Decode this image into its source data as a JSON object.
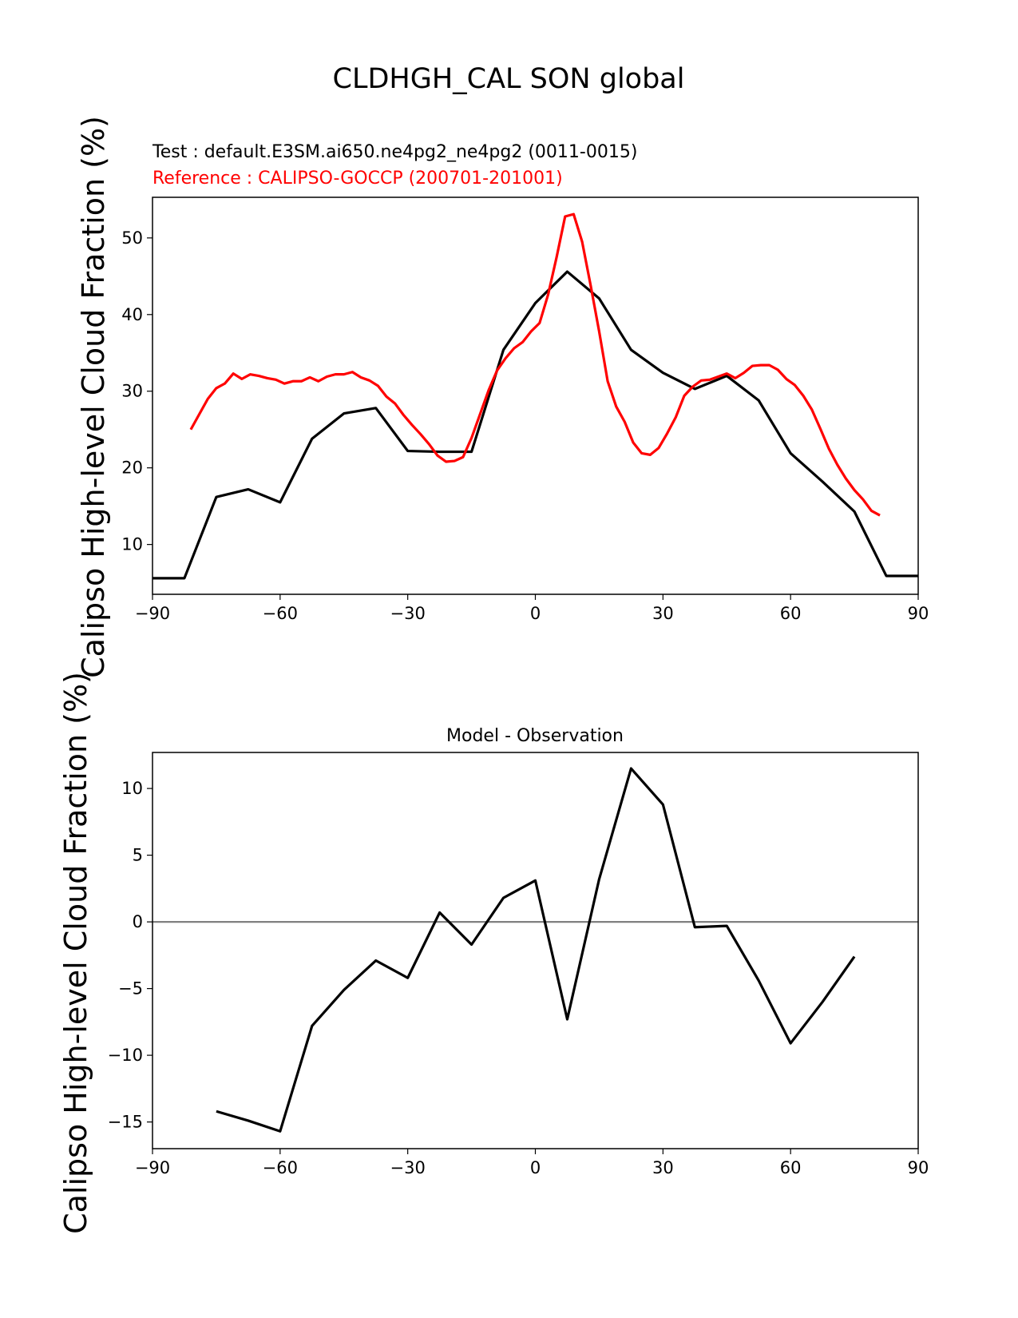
{
  "figure": {
    "suptitle": "CLDHGH_CAL SON global",
    "ylabel": "Calipso High-level Cloud Fraction (%)"
  },
  "colors": {
    "test": "#000000",
    "reference": "#ff0000",
    "zero_line": "#808080"
  },
  "chart_data": [
    {
      "type": "line",
      "test_label": "Test : default.E3SM.ai650.ne4pg2_ne4pg2 (0011-0015)",
      "reference_label": "Reference : CALIPSO-GOCCP (200701-201001)",
      "xlim": [
        -90,
        90
      ],
      "ylim": [
        3.5,
        55.3
      ],
      "xticks": [
        -90,
        -60,
        -30,
        0,
        30,
        60,
        90
      ],
      "xticklabels": [
        "−90",
        "−60",
        "−30",
        "0",
        "30",
        "60",
        "90"
      ],
      "yticks": [
        10,
        20,
        30,
        40,
        50
      ],
      "series": [
        {
          "name": "Test",
          "x": [
            -90,
            -82.5,
            -75,
            -67.5,
            -60,
            -52.5,
            -45,
            -37.5,
            -30,
            -22.5,
            -15,
            -7.5,
            0,
            7.5,
            15,
            22.5,
            30,
            37.5,
            45,
            52.5,
            60,
            67.5,
            75,
            82.5,
            90
          ],
          "y": [
            5.6,
            5.6,
            16.2,
            17.2,
            15.5,
            23.8,
            27.1,
            27.8,
            22.2,
            22.1,
            22.1,
            35.4,
            41.5,
            45.6,
            42.1,
            35.4,
            32.4,
            30.3,
            32.0,
            28.8,
            21.9,
            18.2,
            14.3,
            5.9,
            5.9
          ]
        },
        {
          "name": "Reference",
          "x": [
            -81,
            -79,
            -77,
            -75,
            -73,
            -71,
            -69,
            -67,
            -65,
            -63,
            -61,
            -59,
            -57,
            -55,
            -53,
            -51,
            -49,
            -47,
            -45,
            -43,
            -41,
            -39,
            -37,
            -35,
            -33,
            -31,
            -29,
            -27,
            -25,
            -23,
            -21,
            -19,
            -17,
            -15,
            -13,
            -11,
            -9,
            -7,
            -5,
            -3,
            -1,
            1,
            3,
            5,
            7,
            9,
            11,
            13,
            15,
            17,
            19,
            21,
            23,
            25,
            27,
            29,
            31,
            33,
            35,
            37,
            39,
            41,
            43,
            45,
            47,
            49,
            51,
            53,
            55,
            57,
            59,
            61,
            63,
            65,
            67,
            69,
            71,
            73,
            75,
            77,
            79,
            81
          ],
          "y": [
            25.0,
            27.0,
            29.0,
            30.4,
            31.0,
            32.3,
            31.6,
            32.2,
            32.0,
            31.7,
            31.5,
            31.0,
            31.3,
            31.3,
            31.8,
            31.3,
            31.9,
            32.2,
            32.2,
            32.5,
            31.8,
            31.4,
            30.7,
            29.3,
            28.4,
            26.9,
            25.6,
            24.4,
            23.1,
            21.6,
            20.8,
            20.9,
            21.4,
            23.9,
            27.0,
            30.1,
            32.7,
            34.3,
            35.6,
            36.4,
            37.8,
            38.9,
            42.6,
            47.5,
            52.8,
            53.1,
            49.5,
            43.8,
            37.8,
            31.3,
            28.0,
            26.0,
            23.3,
            21.9,
            21.7,
            22.6,
            24.5,
            26.6,
            29.4,
            30.6,
            31.4,
            31.5,
            31.9,
            32.3,
            31.7,
            32.4,
            33.3,
            33.4,
            33.4,
            32.8,
            31.6,
            30.8,
            29.4,
            27.6,
            25.1,
            22.5,
            20.4,
            18.6,
            17.1,
            15.9,
            14.4,
            13.8
          ]
        }
      ]
    },
    {
      "type": "line",
      "title": "Model - Observation",
      "xlim": [
        -90,
        90
      ],
      "ylim": [
        -17.0,
        12.7
      ],
      "xticks": [
        -90,
        -60,
        -30,
        0,
        30,
        60,
        90
      ],
      "xticklabels": [
        "−90",
        "−60",
        "−30",
        "0",
        "30",
        "60",
        "90"
      ],
      "yticks": [
        10,
        5,
        0,
        -5,
        -10,
        -15
      ],
      "yticklabels": [
        "10",
        "5",
        "0",
        "−5",
        "−10",
        "−15"
      ],
      "zero_line": 0,
      "series": [
        {
          "name": "Model - Observation",
          "x": [
            -75,
            -67.5,
            -60,
            -52.5,
            -45,
            -37.5,
            -30,
            -22.5,
            -15,
            -7.5,
            0,
            7.5,
            15,
            22.5,
            30,
            37.5,
            45,
            52.5,
            60,
            67.5,
            75
          ],
          "y": [
            -14.2,
            -14.9,
            -15.7,
            -7.8,
            -5.1,
            -2.9,
            -4.2,
            0.7,
            -1.7,
            1.8,
            3.1,
            -7.3,
            3.2,
            11.5,
            8.8,
            -0.4,
            -0.3,
            -4.4,
            -9.1,
            -6.0,
            -2.6
          ]
        }
      ]
    }
  ]
}
